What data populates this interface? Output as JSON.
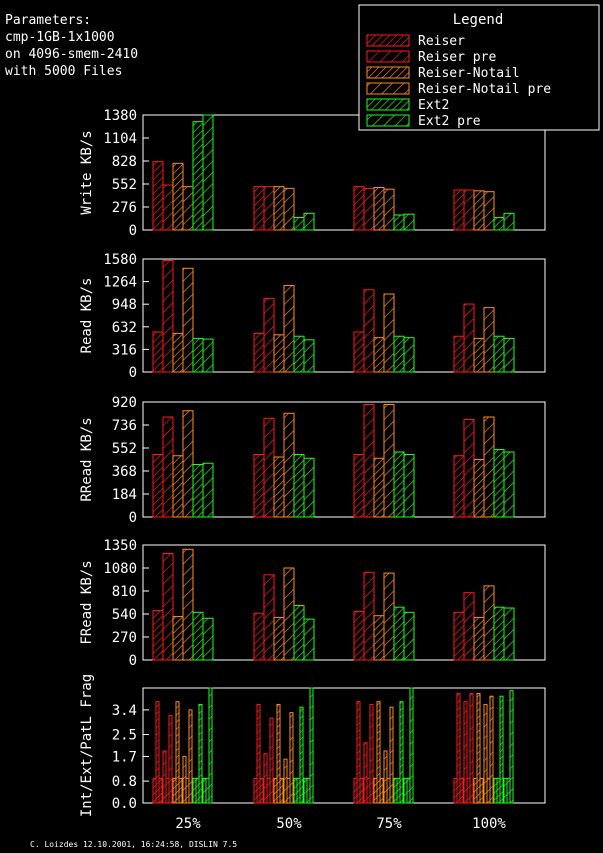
{
  "header": {
    "lines": [
      "Parameters:",
      "cmp-1GB-1x1000",
      "on 4096-smem-2410",
      "with 5000 Files"
    ]
  },
  "legend": {
    "title": "Legend",
    "entries": [
      {
        "label": "Reiser",
        "color": "#ff1a1a",
        "hatch": "dense"
      },
      {
        "label": "Reiser pre",
        "color": "#ff1a1a",
        "hatch": "sparse"
      },
      {
        "label": "Reiser-Notail",
        "color": "#ff8c1a",
        "hatch": "dense"
      },
      {
        "label": "Reiser-Notail pre",
        "color": "#ff8c1a",
        "hatch": "sparse"
      },
      {
        "label": "Ext2",
        "color": "#1aff1a",
        "hatch": "dense"
      },
      {
        "label": "Ext2 pre",
        "color": "#1aff1a",
        "hatch": "sparse"
      }
    ]
  },
  "footer": "C. Loizdes 12.10.2001, 16:24:58, DISLIN 7.5",
  "chart_data": [
    {
      "type": "bar",
      "ylabel": "Write KB/s",
      "yticks": [
        "0",
        "276",
        "552",
        "828",
        "1104",
        "1380"
      ],
      "ylim": [
        0,
        1380
      ],
      "categories": [
        "25%",
        "50%",
        "75%",
        "100%"
      ],
      "series": [
        {
          "name": "Reiser",
          "values": [
            820,
            520,
            520,
            480
          ]
        },
        {
          "name": "Reiser pre",
          "values": [
            540,
            520,
            500,
            480
          ]
        },
        {
          "name": "Reiser-Notail",
          "values": [
            800,
            520,
            510,
            470
          ]
        },
        {
          "name": "Reiser-Notail pre",
          "values": [
            520,
            500,
            490,
            460
          ]
        },
        {
          "name": "Ext2",
          "values": [
            1300,
            150,
            180,
            150
          ]
        },
        {
          "name": "Ext2 pre",
          "values": [
            1380,
            200,
            190,
            200
          ]
        }
      ]
    },
    {
      "type": "bar",
      "ylabel": "Read KB/s",
      "yticks": [
        "0",
        "316",
        "632",
        "948",
        "1264",
        "1580"
      ],
      "ylim": [
        0,
        1580
      ],
      "categories": [
        "25%",
        "50%",
        "75%",
        "100%"
      ],
      "series": [
        {
          "name": "Reiser",
          "values": [
            560,
            540,
            560,
            500
          ]
        },
        {
          "name": "Reiser pre",
          "values": [
            1560,
            1030,
            1150,
            950
          ]
        },
        {
          "name": "Reiser-Notail",
          "values": [
            540,
            520,
            480,
            470
          ]
        },
        {
          "name": "Reiser-Notail pre",
          "values": [
            1450,
            1210,
            1090,
            900
          ]
        },
        {
          "name": "Ext2",
          "values": [
            470,
            500,
            500,
            500
          ]
        },
        {
          "name": "Ext2 pre",
          "values": [
            460,
            450,
            480,
            470
          ]
        }
      ]
    },
    {
      "type": "bar",
      "ylabel": "RRead KB/s",
      "yticks": [
        "0",
        "184",
        "368",
        "552",
        "736",
        "920"
      ],
      "ylim": [
        0,
        920
      ],
      "categories": [
        "25%",
        "50%",
        "75%",
        "100%"
      ],
      "series": [
        {
          "name": "Reiser",
          "values": [
            500,
            500,
            500,
            490
          ]
        },
        {
          "name": "Reiser pre",
          "values": [
            800,
            790,
            900,
            780
          ]
        },
        {
          "name": "Reiser-Notail",
          "values": [
            490,
            480,
            470,
            460
          ]
        },
        {
          "name": "Reiser-Notail pre",
          "values": [
            850,
            830,
            900,
            800
          ]
        },
        {
          "name": "Ext2",
          "values": [
            420,
            500,
            520,
            540
          ]
        },
        {
          "name": "Ext2 pre",
          "values": [
            430,
            470,
            500,
            520
          ]
        }
      ]
    },
    {
      "type": "bar",
      "ylabel": "FRead KB/s",
      "yticks": [
        "0",
        "270",
        "540",
        "810",
        "1080",
        "1350"
      ],
      "ylim": [
        0,
        1350
      ],
      "categories": [
        "25%",
        "50%",
        "75%",
        "100%"
      ],
      "series": [
        {
          "name": "Reiser",
          "values": [
            580,
            550,
            570,
            560
          ]
        },
        {
          "name": "Reiser pre",
          "values": [
            1250,
            1000,
            1030,
            790
          ]
        },
        {
          "name": "Reiser-Notail",
          "values": [
            510,
            500,
            520,
            500
          ]
        },
        {
          "name": "Reiser-Notail pre",
          "values": [
            1300,
            1080,
            1020,
            870
          ]
        },
        {
          "name": "Ext2",
          "values": [
            560,
            640,
            620,
            620
          ]
        },
        {
          "name": "Ext2 pre",
          "values": [
            490,
            480,
            560,
            610
          ]
        }
      ]
    },
    {
      "type": "bar",
      "ylabel": "Int/Ext/PatL Frag",
      "yticks": [
        "0.0",
        "0.8",
        "1.7",
        "2.5",
        "3.4"
      ],
      "ylim": [
        0,
        4.2
      ],
      "categories": [
        "25%",
        "50%",
        "75%",
        "100%"
      ],
      "series": [
        {
          "name": "Reiser",
          "values": [
            [
              0.9,
              3.7,
              0.9
            ],
            [
              0.9,
              3.6,
              0.9
            ],
            [
              0.9,
              3.7,
              0.9
            ],
            [
              0.9,
              4.0,
              0.9
            ]
          ]
        },
        {
          "name": "Reiser pre",
          "values": [
            [
              1.9,
              0.9,
              3.2
            ],
            [
              1.8,
              0.9,
              3.1
            ],
            [
              2.2,
              0.9,
              3.6
            ],
            [
              3.7,
              0.9,
              4.0
            ]
          ]
        },
        {
          "name": "Reiser-Notail",
          "values": [
            [
              0.9,
              3.7,
              0.9
            ],
            [
              0.9,
              3.6,
              0.9
            ],
            [
              0.9,
              3.7,
              0.9
            ],
            [
              0.9,
              4.0,
              0.9
            ]
          ]
        },
        {
          "name": "Reiser-Notail pre",
          "values": [
            [
              1.7,
              0.9,
              3.4
            ],
            [
              1.6,
              0.9,
              3.3
            ],
            [
              1.9,
              0.9,
              3.5
            ],
            [
              3.6,
              0.9,
              3.9
            ]
          ]
        },
        {
          "name": "Ext2",
          "values": [
            [
              0.9,
              0.9,
              3.6
            ],
            [
              0.9,
              0.9,
              3.5
            ],
            [
              0.9,
              0.9,
              3.7
            ],
            [
              0.9,
              0.9,
              3.9
            ]
          ]
        },
        {
          "name": "Ext2 pre",
          "values": [
            [
              0.9,
              0.9,
              4.2
            ],
            [
              0.9,
              0.9,
              4.2
            ],
            [
              0.9,
              0.9,
              4.2
            ],
            [
              0.9,
              0.9,
              4.1
            ]
          ]
        }
      ]
    }
  ]
}
